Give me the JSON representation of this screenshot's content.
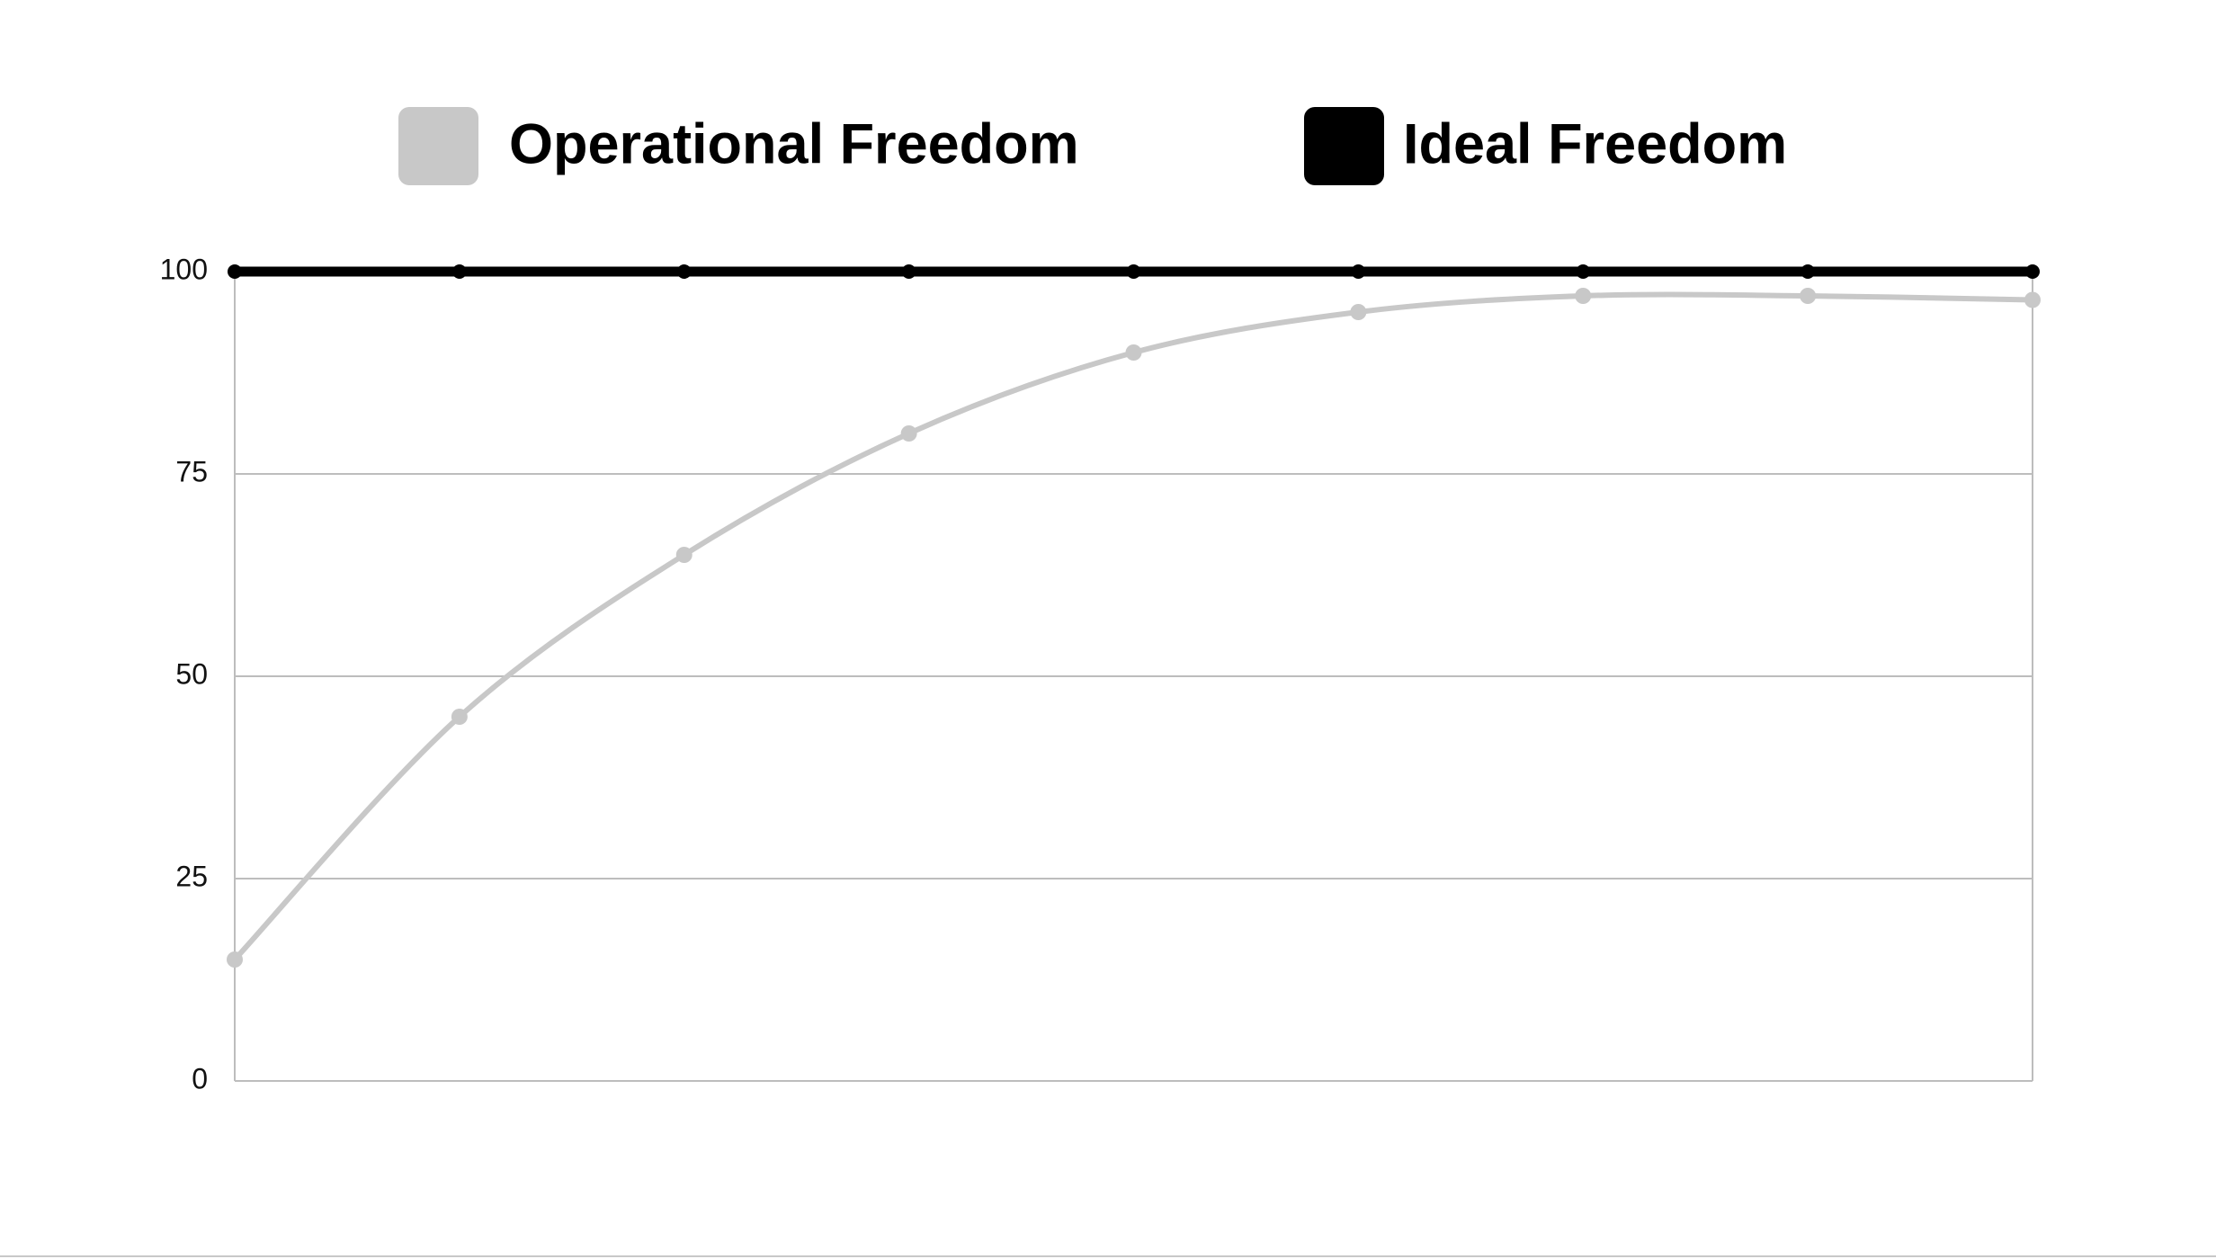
{
  "chart_data": {
    "type": "line",
    "series": [
      {
        "name": "Operational Freedom",
        "color": "#c8c8c8",
        "values": [
          15,
          45,
          65,
          80,
          90,
          95,
          97,
          97,
          96.5
        ]
      },
      {
        "name": "Ideal Freedom",
        "color": "#000000",
        "values": [
          100,
          100,
          100,
          100,
          100,
          100,
          100,
          100,
          100
        ]
      }
    ],
    "ylim": [
      0,
      100
    ],
    "yticks": [
      0,
      25,
      50,
      75,
      100
    ],
    "grid": true,
    "legend": "top"
  }
}
